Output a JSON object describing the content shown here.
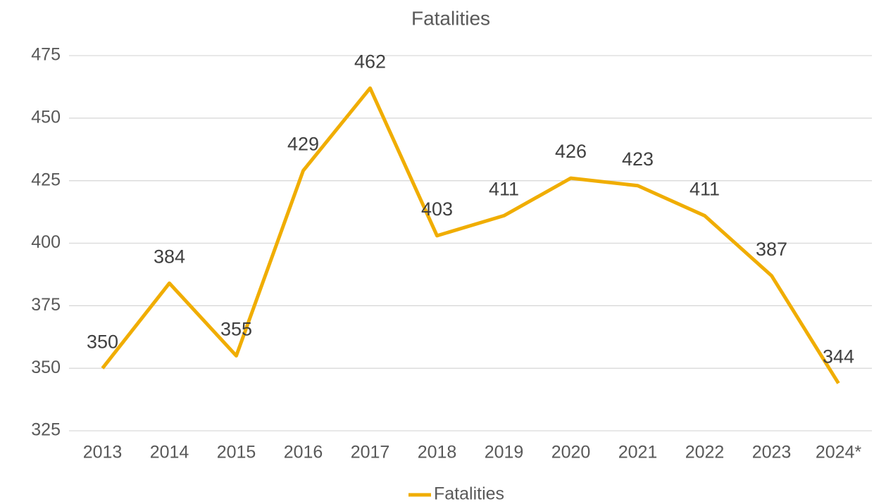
{
  "chart_data": {
    "type": "line",
    "title": "Fatalities",
    "categories": [
      "2013",
      "2014",
      "2015",
      "2016",
      "2017",
      "2018",
      "2019",
      "2020",
      "2021",
      "2022",
      "2023",
      "2024*"
    ],
    "series": [
      {
        "name": "Fatalities",
        "color": "#f0ad00",
        "values": [
          350,
          384,
          355,
          429,
          462,
          403,
          411,
          426,
          423,
          411,
          387,
          344
        ]
      }
    ],
    "ylim": [
      325,
      475
    ],
    "yticks": [
      325,
      350,
      375,
      400,
      425,
      450,
      475
    ],
    "grid": true,
    "legend": "bottom"
  }
}
